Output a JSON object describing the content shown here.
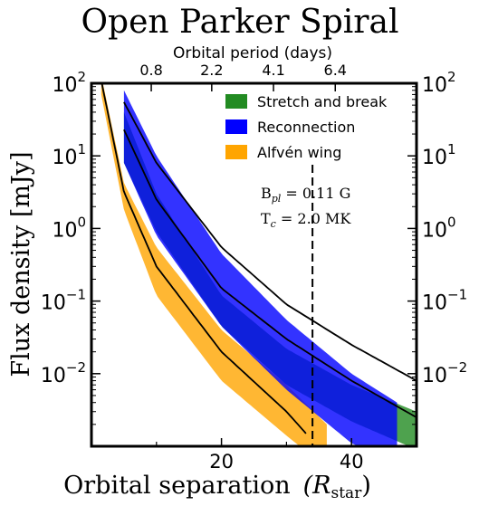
{
  "chart_data": {
    "type": "area",
    "title": "Open Parker Spiral",
    "xlabel": "Orbital separation",
    "xlabel_unit": "R",
    "xlabel_unit_sub": "star",
    "ylabel": "Flux density [mJy]",
    "top_xlabel": "Orbital period (days)",
    "xlim": [
      0,
      50
    ],
    "ylim_log10": [
      -3,
      2
    ],
    "y_scale": "log",
    "x_ticks": [
      20,
      40
    ],
    "x_tick_labels": [
      "20",
      "40"
    ],
    "y_ticks_log10": [
      2,
      1,
      0,
      -1,
      -2
    ],
    "y_tick_labels": [
      {
        "base": "10",
        "exp": "2"
      },
      {
        "base": "10",
        "exp": "1"
      },
      {
        "base": "10",
        "exp": "0"
      },
      {
        "base": "10",
        "exp": "−1"
      },
      {
        "base": "10",
        "exp": "−2"
      }
    ],
    "top_ticks": [
      {
        "x": 9.2,
        "label": "0.8"
      },
      {
        "x": 18.5,
        "label": "2.2"
      },
      {
        "x": 28.0,
        "label": "4.1"
      },
      {
        "x": 37.5,
        "label": "6.4"
      }
    ],
    "series": [
      {
        "name": "Stretch and break",
        "color": "#228b22",
        "band_points": [
          [
            5,
            40,
            8
          ],
          [
            10,
            3,
            0.9
          ],
          [
            20,
            0.12,
            0.045
          ],
          [
            30,
            0.022,
            0.007
          ],
          [
            40,
            0.007,
            0.0022
          ],
          [
            50,
            0.003,
            0.0009
          ]
        ],
        "line1": [
          [
            5,
            55
          ],
          [
            10,
            8
          ],
          [
            20,
            0.55
          ],
          [
            30,
            0.09
          ],
          [
            40,
            0.025
          ],
          [
            50,
            0.008
          ]
        ],
        "line2": [
          [
            5,
            23
          ],
          [
            10,
            2.5
          ],
          [
            20,
            0.15
          ],
          [
            30,
            0.03
          ],
          [
            40,
            0.008
          ],
          [
            50,
            0.0025
          ]
        ]
      },
      {
        "name": "Reconnection",
        "color": "#0000ff",
        "band_points": [
          [
            5,
            80,
            8
          ],
          [
            10,
            10,
            0.8
          ],
          [
            20,
            0.45,
            0.045
          ],
          [
            30,
            0.055,
            0.006
          ],
          [
            40,
            0.01,
            0.0011
          ],
          [
            47,
            0.004,
            0.0006
          ]
        ],
        "line1": [
          [
            5,
            55
          ],
          [
            10,
            8
          ],
          [
            20,
            0.55
          ],
          [
            30,
            0.09
          ],
          [
            40,
            0.025
          ],
          [
            50,
            0.008
          ]
        ],
        "line2": [
          [
            5,
            23
          ],
          [
            10,
            2.5
          ],
          [
            20,
            0.15
          ],
          [
            30,
            0.03
          ],
          [
            40,
            0.008
          ],
          [
            50,
            0.0025
          ]
        ]
      },
      {
        "name": "Alfvén wing",
        "color": "#ffa500",
        "band_points": [
          [
            1.5,
            130,
            70
          ],
          [
            5,
            4.2,
            1.8
          ],
          [
            10,
            0.55,
            0.12
          ],
          [
            20,
            0.04,
            0.008
          ],
          [
            30,
            0.007,
            0.0014
          ],
          [
            36.2,
            0.002,
            0.0005
          ]
        ],
        "line": [
          [
            1.5,
            110
          ],
          [
            5,
            3.2
          ],
          [
            10,
            0.3
          ],
          [
            20,
            0.02
          ],
          [
            30,
            0.003
          ],
          [
            33,
            0.0015
          ]
        ]
      }
    ],
    "annotation": {
      "x_line": 34,
      "line1_main": "B",
      "line1_sub": "pl",
      "line1_rest": " = 0.11 G",
      "line2_main": "T",
      "line2_sub": "c",
      "line2_rest": " = 2.0 MK"
    },
    "legend_position": "top-right",
    "grid": false
  }
}
